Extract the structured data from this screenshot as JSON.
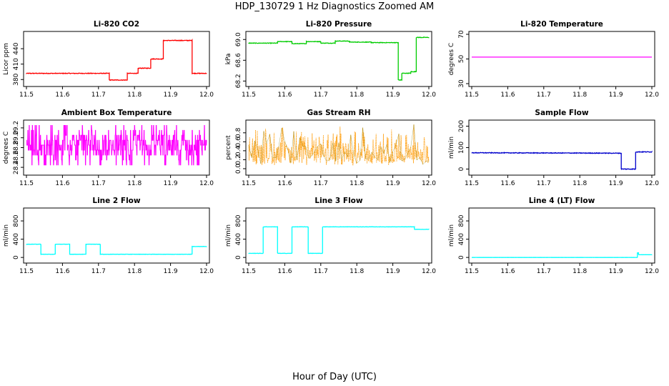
{
  "figure": {
    "title": "HDP_130729  1 Hz Diagnostics Zoomed AM",
    "xlabel": "Hour of Day (UTC)"
  },
  "chart_data": [
    {
      "type": "line",
      "title": "Li-820 CO2",
      "ylabel": "Licor ppm",
      "color": "#ff0000",
      "xlim": [
        11.5,
        12.0
      ],
      "ylim": [
        372,
        468
      ],
      "xticks": [
        "11.5",
        "11.6",
        "11.7",
        "11.8",
        "11.9",
        "12.0"
      ],
      "yticks": [
        "380",
        "410",
        "440"
      ],
      "noise": 0.6,
      "x": [
        11.5,
        11.73,
        11.73,
        11.78,
        11.78,
        11.81,
        11.81,
        11.845,
        11.845,
        11.88,
        11.88,
        11.96,
        11.96,
        12.0
      ],
      "y": [
        392,
        392,
        379,
        379,
        392,
        392,
        402,
        402,
        420,
        420,
        456,
        456,
        392,
        392
      ]
    },
    {
      "type": "line",
      "title": "Li-820 Pressure",
      "ylabel": "kPa",
      "color": "#00cc00",
      "xlim": [
        11.5,
        12.0
      ],
      "ylim": [
        68.15,
        69.1
      ],
      "xticks": [
        "11.5",
        "11.6",
        "11.7",
        "11.8",
        "11.9",
        "12.0"
      ],
      "yticks": [
        "68.2",
        "68.6",
        "69.0"
      ],
      "noise": 0.005,
      "x": [
        11.5,
        11.58,
        11.58,
        11.62,
        11.62,
        11.66,
        11.66,
        11.7,
        11.7,
        11.74,
        11.74,
        11.78,
        11.78,
        11.84,
        11.84,
        11.915,
        11.915,
        11.925,
        11.925,
        11.95,
        11.95,
        11.965,
        11.965,
        12.0
      ],
      "y": [
        68.93,
        68.93,
        68.96,
        68.96,
        68.92,
        68.92,
        68.96,
        68.96,
        68.93,
        68.93,
        68.97,
        68.97,
        68.95,
        68.95,
        68.94,
        68.94,
        68.22,
        68.22,
        68.35,
        68.35,
        68.38,
        68.38,
        69.04,
        69.04
      ]
    },
    {
      "type": "line",
      "title": "Li-820 Temperature",
      "ylabel": "degrees C",
      "color": "#ff00ff",
      "xlim": [
        11.5,
        12.0
      ],
      "ylim": [
        30,
        70
      ],
      "xticks": [
        "11.5",
        "11.6",
        "11.7",
        "11.8",
        "11.9",
        "12.0"
      ],
      "yticks": [
        "30",
        "50",
        "70"
      ],
      "noise": 0,
      "x": [
        11.5,
        12.0
      ],
      "y": [
        51.5,
        51.5
      ]
    },
    {
      "type": "line",
      "title": "Ambient Box Temperature",
      "ylabel": "degrees C",
      "color": "#ff00ff",
      "xlim": [
        11.5,
        12.0
      ],
      "ylim": [
        28.3,
        29.3
      ],
      "xticks": [
        "11.5",
        "11.6",
        "11.7",
        "11.8",
        "11.9",
        "12.0"
      ],
      "yticks": [
        "28.4",
        "28.6",
        "28.8",
        "29.0",
        "29.2"
      ],
      "levels": [
        28.45,
        28.55,
        28.65,
        28.75,
        28.85,
        28.95,
        29.05,
        29.15,
        29.25
      ],
      "samples": 400,
      "x": [
        11.5,
        12.0
      ],
      "y": [
        28.75,
        28.75
      ]
    },
    {
      "type": "line",
      "title": "Gas Stream RH",
      "ylabel": "percent",
      "color": "#ff9900",
      "accent": "#7a7a00",
      "xlim": [
        11.5,
        12.0
      ],
      "ylim": [
        -0.08,
        1.02
      ],
      "xticks": [
        "11.5",
        "11.6",
        "11.7",
        "11.8",
        "11.9",
        "12.0"
      ],
      "yticks": [
        "0.0",
        "0.2",
        "0.4",
        "0.6",
        "0.8"
      ],
      "samples": 420,
      "spread": 0.75,
      "x": [
        11.5,
        12.0
      ],
      "y": [
        0.25,
        0.25
      ]
    },
    {
      "type": "line",
      "title": "Sample Flow",
      "ylabel": "ml/min",
      "color": "#0000cc",
      "xlim": [
        11.5,
        12.0
      ],
      "ylim": [
        -15,
        215
      ],
      "xticks": [
        "11.5",
        "11.6",
        "11.7",
        "11.8",
        "11.9",
        "12.0"
      ],
      "yticks": [
        "0",
        "100",
        "200"
      ],
      "noise": 1.5,
      "x": [
        11.5,
        11.915,
        11.915,
        11.955,
        11.955,
        12.0
      ],
      "y": [
        76,
        74,
        0,
        0,
        80,
        80
      ]
    },
    {
      "type": "line",
      "title": "Line 2 Flow",
      "ylabel": "ml/min",
      "color": "#00ffff",
      "xlim": [
        11.5,
        12.0
      ],
      "ylim": [
        -60,
        1020
      ],
      "xticks": [
        "11.5",
        "11.6",
        "11.7",
        "11.8",
        "11.9",
        "12.0"
      ],
      "yticks": [
        "0",
        "400",
        "800"
      ],
      "noise": 3,
      "x": [
        11.5,
        11.54,
        11.54,
        11.58,
        11.58,
        11.62,
        11.62,
        11.665,
        11.665,
        11.705,
        11.705,
        11.96,
        11.96,
        12.0
      ],
      "y": [
        290,
        290,
        70,
        70,
        290,
        290,
        70,
        70,
        290,
        290,
        70,
        70,
        240,
        240
      ]
    },
    {
      "type": "line",
      "title": "Line 3 Flow",
      "ylabel": "ml/min",
      "color": "#00ffff",
      "xlim": [
        11.5,
        12.0
      ],
      "ylim": [
        -60,
        1020
      ],
      "xticks": [
        "11.5",
        "11.6",
        "11.7",
        "11.8",
        "11.9",
        "12.0"
      ],
      "yticks": [
        "0",
        "400",
        "800"
      ],
      "noise": 3,
      "x": [
        11.5,
        11.54,
        11.54,
        11.58,
        11.58,
        11.62,
        11.62,
        11.665,
        11.665,
        11.705,
        11.705,
        11.96,
        11.96,
        12.0
      ],
      "y": [
        90,
        90,
        670,
        670,
        90,
        90,
        670,
        670,
        90,
        90,
        670,
        670,
        615,
        615
      ]
    },
    {
      "type": "line",
      "title": "Line 4 (LT) Flow",
      "ylabel": "ml/min",
      "color": "#00ffff",
      "xlim": [
        11.5,
        12.0
      ],
      "ylim": [
        -60,
        1020
      ],
      "xticks": [
        "11.5",
        "11.6",
        "11.7",
        "11.8",
        "11.9",
        "12.0"
      ],
      "yticks": [
        "0",
        "400",
        "800"
      ],
      "noise": 1,
      "x": [
        11.5,
        11.96,
        11.96,
        11.963,
        11.963,
        12.0
      ],
      "y": [
        0,
        0,
        100,
        100,
        60,
        60
      ]
    }
  ]
}
